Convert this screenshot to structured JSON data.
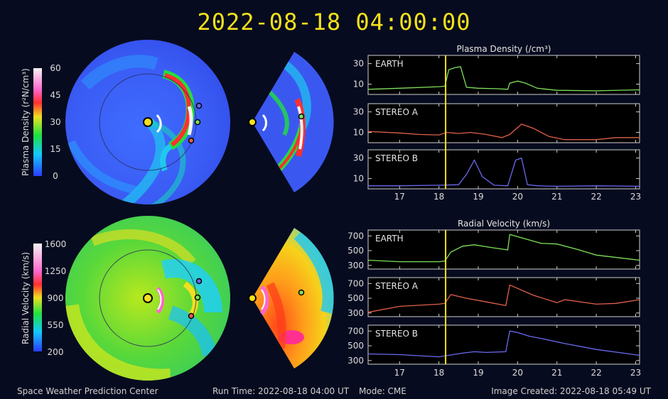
{
  "timestamp": "2022-08-18  04:00:00",
  "footer": {
    "center": "Space Weather Prediction Center",
    "run_time": "Run Time: 2022-08-18 04:00 UT",
    "mode": "Mode: CME",
    "created": "Image Created: 2022-08-18 05:49 UT"
  },
  "colorbars": {
    "density": {
      "label": "Plasma Density (r²N/cm³)",
      "ticks": [
        "60",
        "45",
        "30",
        "15",
        "0"
      ]
    },
    "velocity": {
      "label": "Radial Velocity (km/s)",
      "ticks": [
        "1600",
        "1250",
        "900",
        "550",
        "200"
      ]
    }
  },
  "colors": {
    "accent_yellow": "#f4e11a",
    "earth": "#7ee05a",
    "stereo_a": "#e0604a",
    "stereo_b": "#6a6af0"
  },
  "chart_data": [
    {
      "type": "line",
      "title": "Plasma Density (/cm³)",
      "xlim": [
        16.2,
        23.1
      ],
      "x_ticks": [
        17,
        18,
        19,
        20,
        21,
        22,
        23
      ],
      "current_time": 18.17,
      "panels": [
        {
          "name": "EARTH",
          "color": "#7ee05a",
          "ylim": [
            0,
            38
          ],
          "y_ticks": [
            10,
            30
          ],
          "x": [
            16.2,
            17.0,
            18.0,
            18.15,
            18.25,
            18.4,
            18.55,
            18.7,
            19.0,
            19.5,
            19.75,
            19.8,
            20.0,
            20.2,
            20.5,
            21.0,
            22.0,
            23.1
          ],
          "y": [
            5,
            6,
            7.5,
            8,
            24,
            26,
            27,
            7,
            6,
            5.5,
            5,
            11,
            13,
            11,
            6,
            4,
            3.5,
            4.5
          ]
        },
        {
          "name": "STEREO A",
          "color": "#e0604a",
          "ylim": [
            0,
            38
          ],
          "y_ticks": [
            10,
            30
          ],
          "x": [
            16.2,
            17.0,
            17.5,
            18.0,
            18.2,
            18.5,
            18.8,
            19.2,
            19.6,
            19.8,
            20.1,
            20.4,
            20.8,
            21.2,
            22.0,
            22.5,
            23.1
          ],
          "y": [
            11,
            9.5,
            8,
            7.5,
            10,
            9,
            10,
            8,
            5,
            8,
            18,
            14,
            6,
            3,
            3,
            5,
            5
          ]
        },
        {
          "name": "STEREO B",
          "color": "#6a6af0",
          "ylim": [
            0,
            38
          ],
          "y_ticks": [
            10,
            30
          ],
          "x": [
            16.2,
            17.0,
            18.0,
            18.5,
            18.7,
            18.9,
            19.1,
            19.4,
            19.75,
            19.95,
            20.1,
            20.25,
            20.5,
            21.0,
            22.0,
            23.1
          ],
          "y": [
            3,
            3,
            3.5,
            4,
            14,
            28,
            12,
            3.5,
            3,
            28,
            30,
            4,
            3,
            2.5,
            3,
            2.5
          ]
        }
      ]
    },
    {
      "type": "line",
      "title": "Radial Velocity (km/s)",
      "xlim": [
        16.2,
        23.1
      ],
      "x_ticks": [
        17,
        18,
        19,
        20,
        21,
        22,
        23
      ],
      "current_time": 18.17,
      "panels": [
        {
          "name": "EARTH",
          "color": "#7ee05a",
          "ylim": [
            250,
            780
          ],
          "y_ticks": [
            300,
            500,
            700
          ],
          "x": [
            16.2,
            17.0,
            18.0,
            18.15,
            18.3,
            18.6,
            18.9,
            19.3,
            19.75,
            19.8,
            20.2,
            20.6,
            21.0,
            21.5,
            22.0,
            23.1
          ],
          "y": [
            370,
            350,
            350,
            360,
            480,
            560,
            580,
            545,
            510,
            720,
            660,
            600,
            590,
            520,
            440,
            370
          ]
        },
        {
          "name": "STEREO A",
          "color": "#e0604a",
          "ylim": [
            250,
            780
          ],
          "y_ticks": [
            300,
            500,
            700
          ],
          "x": [
            16.2,
            17.0,
            18.0,
            18.15,
            18.3,
            18.7,
            19.2,
            19.7,
            19.8,
            20.4,
            21.0,
            21.2,
            22.0,
            22.5,
            23.1
          ],
          "y": [
            310,
            390,
            420,
            430,
            550,
            500,
            450,
            400,
            680,
            540,
            440,
            480,
            420,
            430,
            480
          ]
        },
        {
          "name": "STEREO B",
          "color": "#6a6af0",
          "ylim": [
            250,
            780
          ],
          "y_ticks": [
            300,
            500,
            700
          ],
          "x": [
            16.2,
            17.0,
            18.0,
            18.6,
            18.9,
            19.2,
            19.7,
            19.8,
            20.0,
            20.3,
            20.6,
            21.2,
            22.0,
            23.1
          ],
          "y": [
            390,
            380,
            350,
            400,
            420,
            410,
            420,
            700,
            680,
            630,
            600,
            530,
            450,
            370
          ]
        }
      ]
    }
  ]
}
